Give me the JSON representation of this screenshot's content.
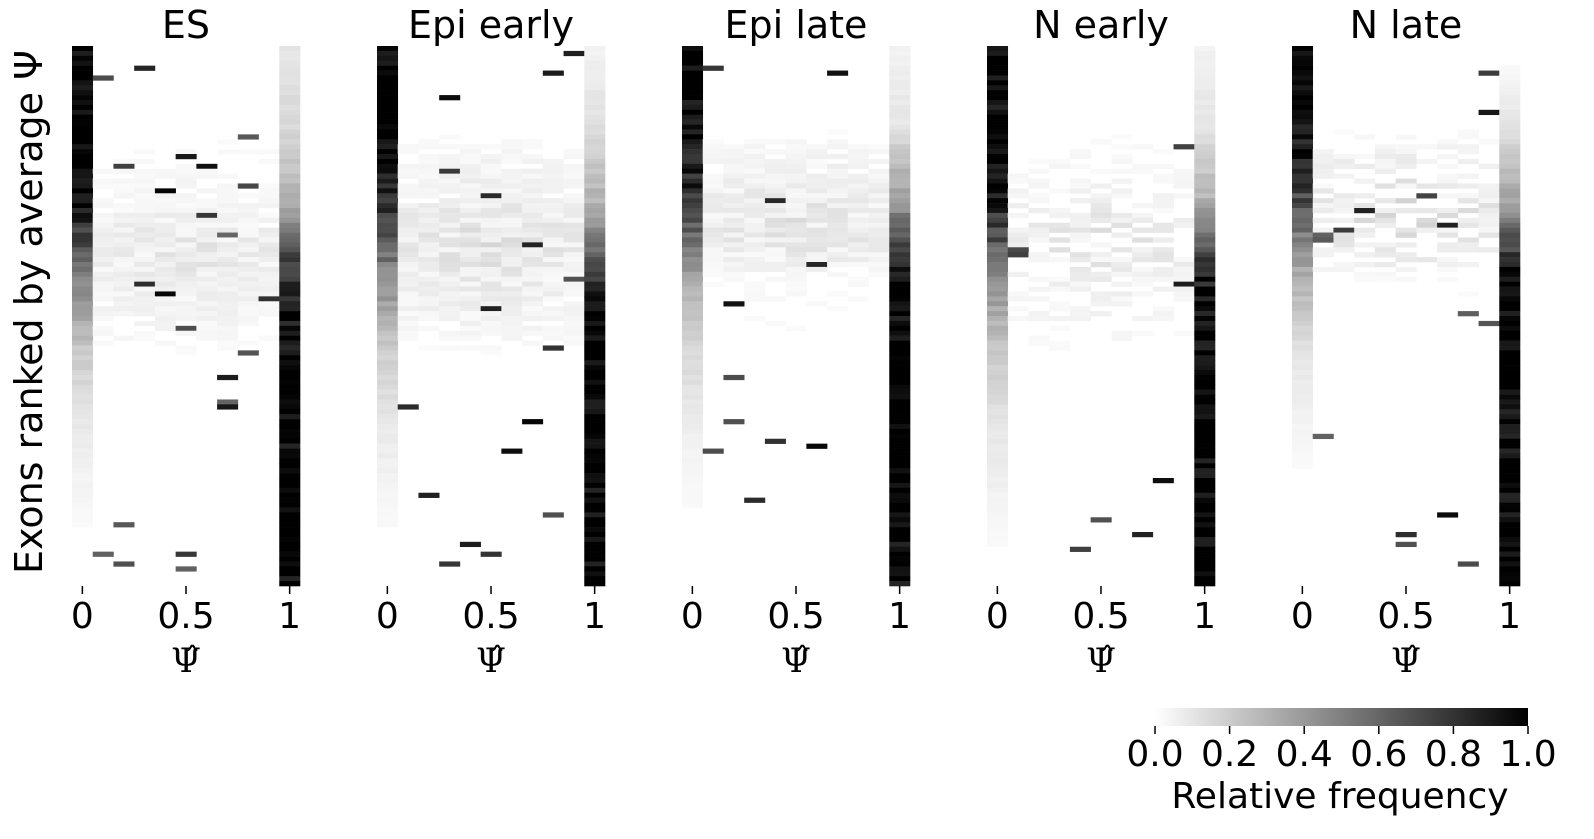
{
  "chart_data": {
    "type": "heatmap",
    "ylabel": "Exons ranked by average Ψ",
    "xlabel": "Ψ̂",
    "x_bins": [
      0,
      0.1,
      0.2,
      0.3,
      0.4,
      0.5,
      0.6,
      0.7,
      0.8,
      0.9,
      1
    ],
    "x_tick_labels": [
      "0",
      "0.5",
      "1"
    ],
    "x_tick_values": [
      0,
      0.5,
      1
    ],
    "colormap": {
      "low": "#ffffff",
      "high": "#000000"
    },
    "colorbar": {
      "label": "Relative frequency",
      "range": [
        0,
        1
      ],
      "tick_labels": [
        "0.0",
        "0.2",
        "0.4",
        "0.6",
        "0.8",
        "1.0"
      ],
      "tick_values": [
        0,
        0.2,
        0.4,
        0.6,
        0.8,
        1.0
      ]
    },
    "panels": [
      {
        "title": "ES",
        "profile": {
          "psi_frac_in_zero": [
            1.0,
            1.0,
            0.95,
            0.5,
            0.2,
            0.08,
            0.03,
            0.0
          ],
          "psi_frac_in_one": [
            0.1,
            0.15,
            0.3,
            0.85,
            1.0,
            1.0,
            1.0,
            1.0
          ]
        }
      },
      {
        "title": "Epi early",
        "profile": {
          "psi_frac_in_zero": [
            1.0,
            1.0,
            0.85,
            0.45,
            0.18,
            0.08,
            0.03,
            0.0
          ],
          "psi_frac_in_one": [
            0.05,
            0.12,
            0.3,
            0.8,
            1.0,
            1.0,
            1.0,
            1.0
          ]
        }
      },
      {
        "title": "Epi late",
        "profile": {
          "psi_frac_in_zero": [
            1.0,
            1.0,
            0.8,
            0.35,
            0.15,
            0.06,
            0.02,
            0.0
          ],
          "psi_frac_in_one": [
            0.05,
            0.1,
            0.4,
            1.0,
            1.0,
            1.0,
            1.0,
            1.0
          ]
        }
      },
      {
        "title": "N early",
        "profile": {
          "psi_frac_in_zero": [
            1.0,
            1.0,
            0.9,
            0.45,
            0.2,
            0.1,
            0.04,
            0.0
          ],
          "psi_frac_in_one": [
            0.05,
            0.1,
            0.3,
            0.9,
            1.0,
            1.0,
            1.0,
            1.0
          ]
        }
      },
      {
        "title": "N late",
        "profile": {
          "psi_frac_in_zero": [
            1.0,
            1.0,
            0.7,
            0.3,
            0.1,
            0.04,
            0.0,
            0.0
          ],
          "psi_frac_in_one": [
            0.0,
            0.1,
            0.35,
            1.0,
            1.0,
            1.0,
            1.0,
            1.0
          ]
        }
      }
    ]
  }
}
